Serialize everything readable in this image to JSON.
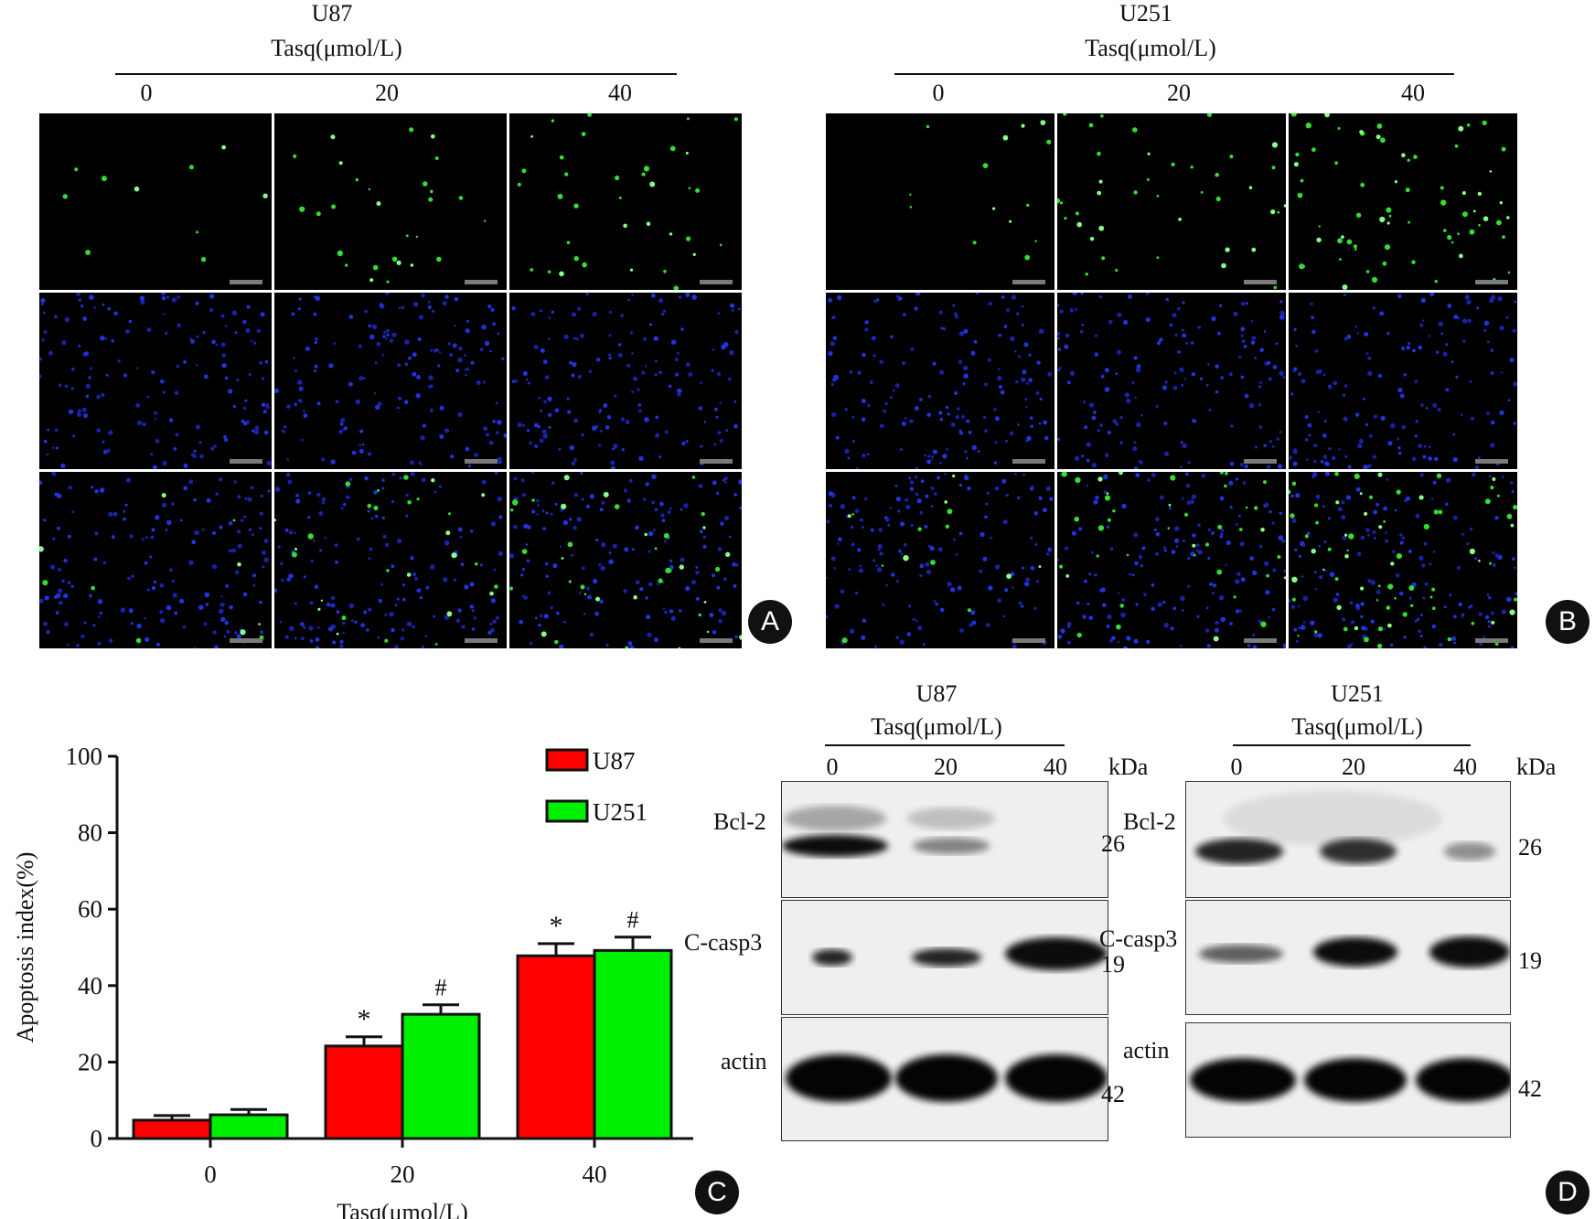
{
  "panelA": {
    "cell_line": "U87",
    "axis_label": "Tasq(μmol/L)",
    "columns": [
      "0",
      "20",
      "40"
    ],
    "badge": "A"
  },
  "panelB": {
    "cell_line": "U251",
    "axis_label": "Tasq(μmol/L)",
    "columns": [
      "0",
      "20",
      "40"
    ],
    "badge": "B"
  },
  "chart_data": {
    "type": "bar",
    "categories": [
      "0",
      "20",
      "40"
    ],
    "series": [
      {
        "name": "U87",
        "color": "#ff0000",
        "values": [
          4.8,
          24.2,
          47.8
        ],
        "errors": [
          1.2,
          2.4,
          3.2
        ],
        "sig": [
          "",
          "*",
          "*"
        ]
      },
      {
        "name": "U251",
        "color": "#00ee00",
        "values": [
          6.2,
          32.5,
          49.2
        ],
        "errors": [
          1.4,
          2.5,
          3.5
        ],
        "sig": [
          "",
          "#",
          "#"
        ]
      }
    ],
    "xlabel": "Tasq(μmol/L)",
    "ylabel": "Apoptosis index(%)",
    "ylim": [
      0,
      100
    ],
    "yticks": [
      0,
      20,
      40,
      60,
      80,
      100
    ],
    "legend_position": "top-right",
    "badge": "C"
  },
  "panelD": {
    "badge": "D",
    "kda_label": "kDa",
    "blots": [
      {
        "cell_line": "U87",
        "axis_label": "Tasq(μmol/L)",
        "columns": [
          "0",
          "20",
          "40"
        ],
        "rows": [
          {
            "protein": "Bcl-2",
            "kda": "26"
          },
          {
            "protein": "C-casp3",
            "kda": "19"
          },
          {
            "protein": "actin",
            "kda": "42"
          }
        ]
      },
      {
        "cell_line": "U251",
        "axis_label": "Tasq(μmol/L)",
        "columns": [
          "0",
          "20",
          "40"
        ],
        "rows": [
          {
            "protein": "Bcl-2",
            "kda": "26"
          },
          {
            "protein": "C-casp3",
            "kda": "19"
          },
          {
            "protein": "actin",
            "kda": "42"
          }
        ]
      }
    ]
  }
}
